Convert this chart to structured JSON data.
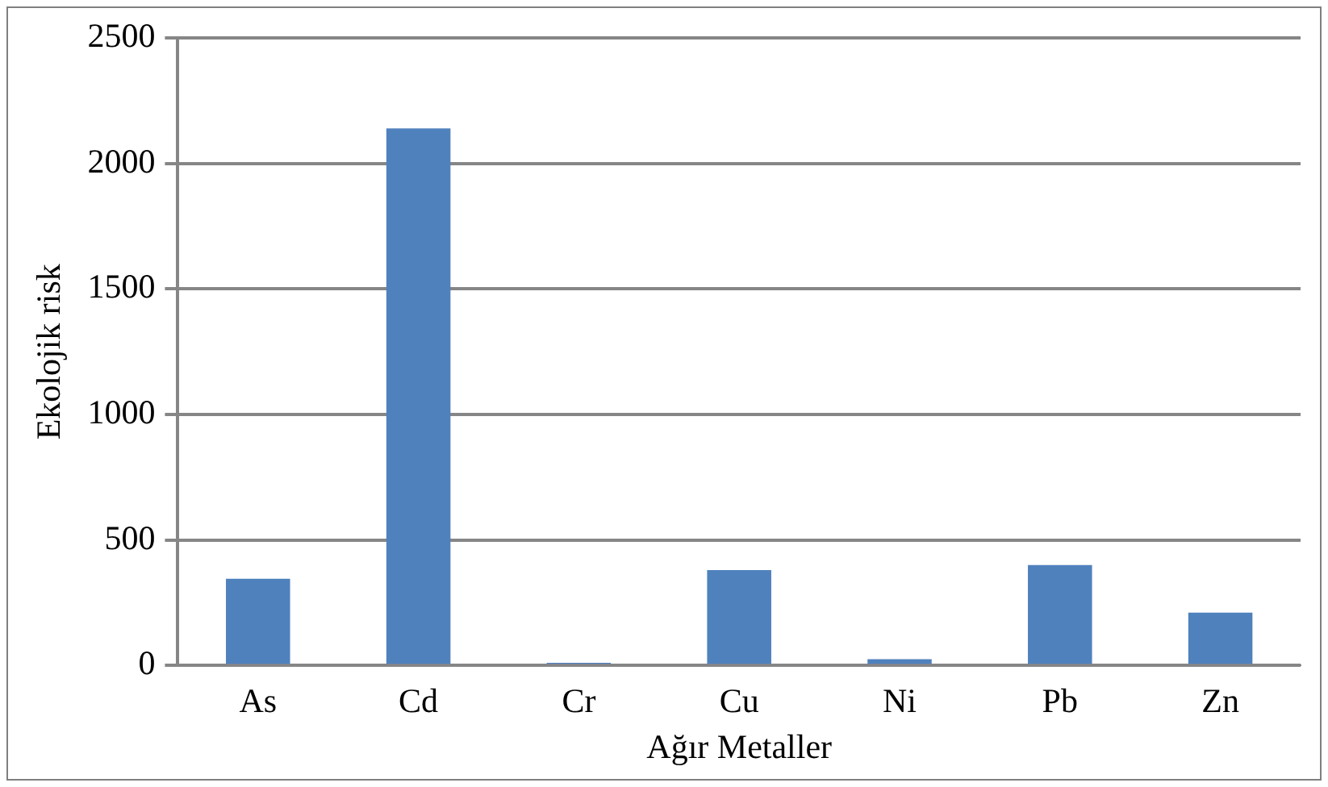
{
  "chart_data": {
    "type": "bar",
    "xlabel": "Ağır Metaller",
    "ylabel": "Ekolojik risk",
    "categories": [
      "As",
      "Cd",
      "Cr",
      "Cu",
      "Ni",
      "Pb",
      "Zn"
    ],
    "values": [
      345,
      2140,
      10,
      380,
      25,
      400,
      210
    ],
    "color": "#4f81bd",
    "ylim": [
      0,
      2500
    ],
    "yticks": [
      0,
      500,
      1000,
      1500,
      2000,
      2500
    ],
    "grid": "y",
    "legend": false
  }
}
